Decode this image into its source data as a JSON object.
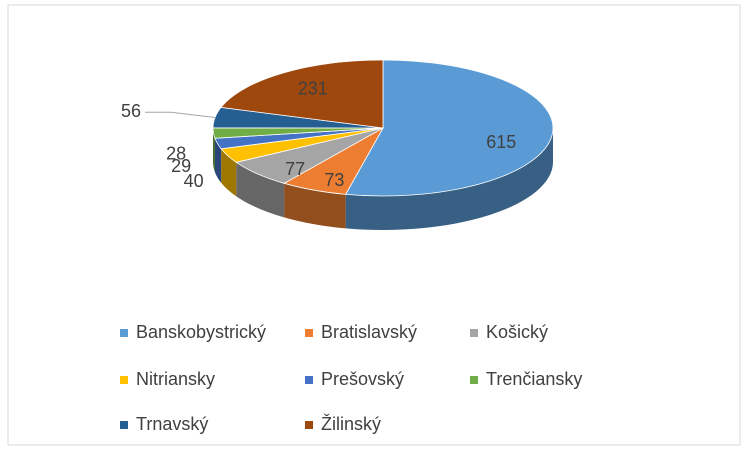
{
  "chart_data": {
    "type": "pie",
    "three_d": true,
    "categories": [
      "Banskobystrický",
      "Bratislavský",
      "Košický",
      "Nitriansky",
      "Prešovský",
      "Trenčiansky",
      "Trnavský",
      "Žilinský"
    ],
    "values": [
      615,
      73,
      77,
      40,
      29,
      28,
      56,
      231
    ],
    "colors": [
      "#5b9bd5",
      "#ed7d31",
      "#a5a5a5",
      "#ffc000",
      "#4472c4",
      "#70ad47",
      "#255e91",
      "#9e480e"
    ],
    "legend": "bottom"
  }
}
